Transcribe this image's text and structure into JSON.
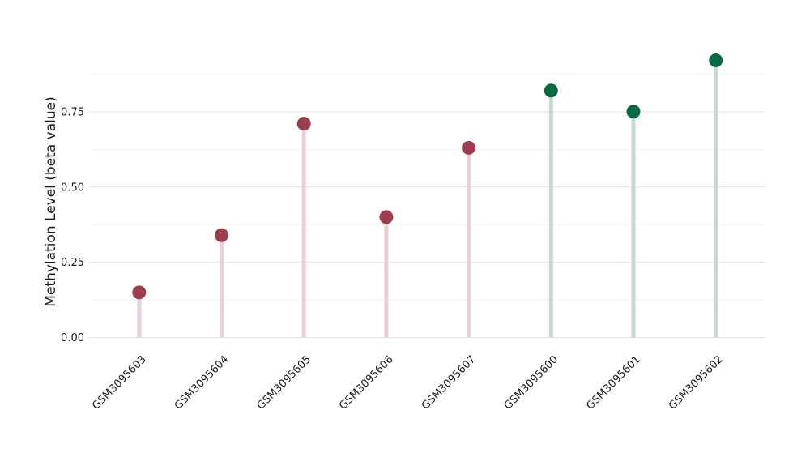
{
  "chart_data": {
    "type": "lollipop",
    "title": "",
    "xlabel": "",
    "ylabel": "Methylation Level (beta value)",
    "categories": [
      "GSM3095603",
      "GSM3095604",
      "GSM3095605",
      "GSM3095606",
      "GSM3095607",
      "GSM3095600",
      "GSM3095601",
      "GSM3095602"
    ],
    "values": [
      0.15,
      0.34,
      0.71,
      0.4,
      0.63,
      0.82,
      0.75,
      0.92
    ],
    "point_groups": [
      "red",
      "red",
      "red",
      "red",
      "red",
      "green",
      "green",
      "green"
    ],
    "yticks": {
      "values": [
        0,
        0.25,
        0.5,
        0.75
      ],
      "labels": [
        "0.00",
        "0.25",
        "0.50",
        "0.75"
      ]
    },
    "minor_grid_values": [
      0.125,
      0.375,
      0.625,
      0.875
    ],
    "ylim": [
      0,
      0.966
    ],
    "grid": "horizontal-only",
    "legend": "none",
    "x_label_rotation_deg": 45,
    "colors": {
      "red_point": "#9E3D4E",
      "red_stem": "#E8D0D5",
      "green_point": "#076A42",
      "green_stem": "#C5D9D0",
      "grid_major": "#E5E5E5",
      "grid_minor": "#F2F2F2",
      "background": "#FFFFFF",
      "text": "#1A1A1A"
    }
  }
}
